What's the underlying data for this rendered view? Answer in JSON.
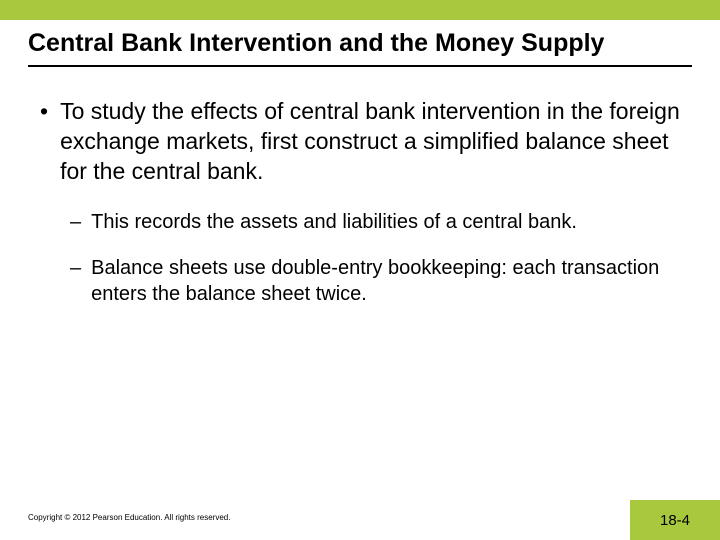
{
  "colors": {
    "accent": "#a8c93e",
    "text": "#000000",
    "background": "#ffffff"
  },
  "typography": {
    "family": "Verdana, Geneva, sans-serif",
    "title_size": 25,
    "body_size": 23,
    "sub_size": 20,
    "copyright_size": 8,
    "page_num_size": 15
  },
  "title": "Central Bank Intervention and the Money Supply",
  "bullets": [
    {
      "marker": "•",
      "text": "To study the effects of central bank intervention in the foreign exchange markets, first construct a simplified balance sheet for the central bank.",
      "sub": [
        {
          "marker": "–",
          "text": "This records the assets and liabilities of a central bank."
        },
        {
          "marker": "–",
          "text": "Balance sheets use double-entry bookkeeping: each transaction enters the balance sheet twice."
        }
      ]
    }
  ],
  "copyright": "Copyright © 2012 Pearson Education. All rights reserved.",
  "page_number": "18-4"
}
